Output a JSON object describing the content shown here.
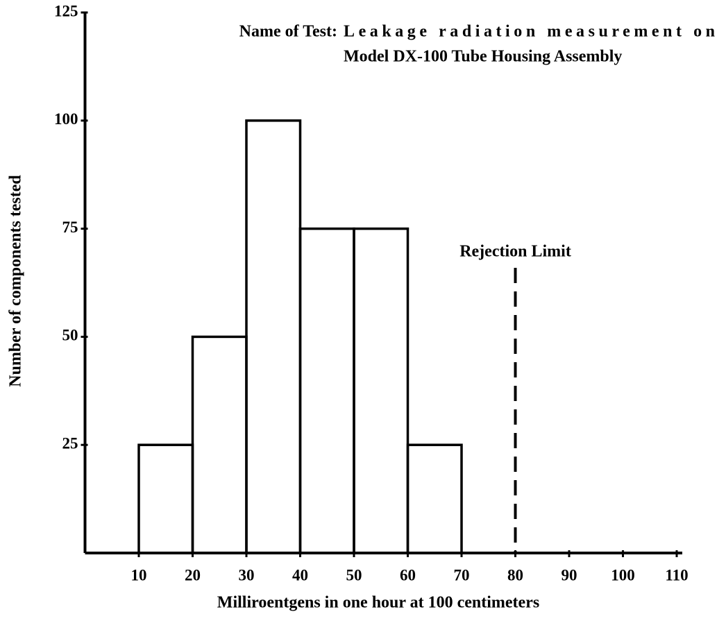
{
  "chart_data": {
    "type": "histogram",
    "title_label": "Name of Test:",
    "title_lines": [
      "Leakage radiation measurement on",
      "Model DX-100 Tube Housing Assembly"
    ],
    "x_label": "Milliroentgens in one hour at 100 centimeters",
    "y_label": "Number of components tested",
    "bins": [
      10,
      20,
      30,
      40,
      50,
      60,
      70
    ],
    "counts": [
      25,
      50,
      100,
      75,
      75,
      25
    ],
    "xlim": [
      0,
      110
    ],
    "ylim": [
      0,
      125
    ],
    "xticks": [
      10,
      20,
      30,
      40,
      50,
      60,
      70,
      80,
      90,
      100,
      110
    ],
    "yticks": [
      25,
      50,
      75,
      100,
      125
    ],
    "rejection_limit": {
      "label": "Rejection Limit",
      "x": 80
    }
  }
}
